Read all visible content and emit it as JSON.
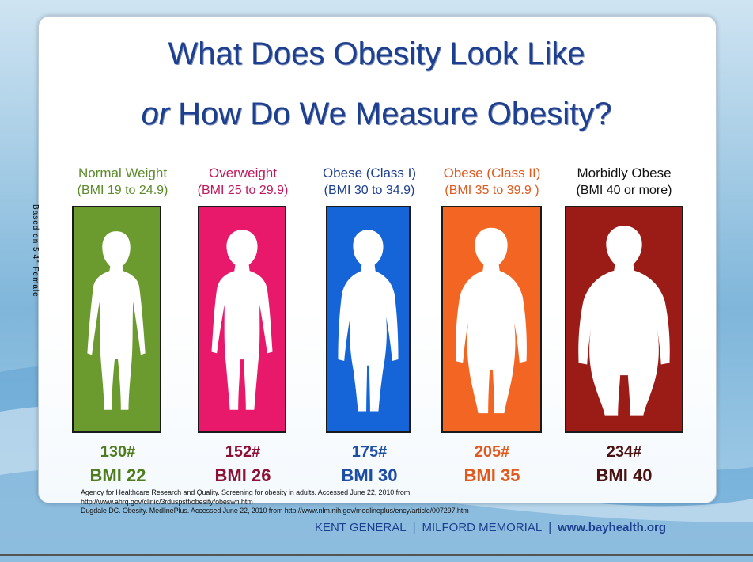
{
  "title": {
    "line1": "What Does Obesity Look Like",
    "line2_or": "or",
    "line2_rest": " How Do We Measure Obesity?"
  },
  "side_note": "Based on 5'4\" Female",
  "categories": [
    {
      "name": "Normal Weight",
      "range": "(BMI 19 to 24.9)",
      "weight": "130#",
      "bmi": "BMI 22",
      "color": "#6b9a2e",
      "label_color": "#5a8a2a",
      "text_color": "#4f7d1e"
    },
    {
      "name": "Overweight",
      "range": "(BMI 25 to 29.9)",
      "weight": "152#",
      "bmi": "BMI 26",
      "color": "#e8196a",
      "label_color": "#c0185a",
      "text_color": "#8c1235"
    },
    {
      "name": "Obese (Class I)",
      "range": "(BMI 30 to 34.9)",
      "weight": "175#",
      "bmi": "BMI 30",
      "color": "#1565d8",
      "label_color": "#1d3f8f",
      "text_color": "#1d4ea3"
    },
    {
      "name": "Obese (Class II)",
      "range": "(BMI 35 to 39.9 )",
      "weight": "205#",
      "bmi": "BMI 35",
      "color": "#f26522",
      "label_color": "#e05a1e",
      "text_color": "#e05a1e"
    },
    {
      "name": "Morbidly Obese",
      "range": "(BMI 40 or more)",
      "weight": "234#",
      "bmi": "BMI 40",
      "color": "#9b1c16",
      "label_color": "#111111",
      "text_color": "#4a1210"
    }
  ],
  "references": [
    "Agency for Healthcare Research and Quality. Screening for obesity in adults. Accessed June 22, 2010 from",
    "http://www.ahrq.gov/clinic/3rduspstf/obesity/obeswh.htm",
    "Dugdale DC. Obesity. MedlinePlus. Accessed June 22, 2010 from http://www.nlm.nih.gov/medlineplus/ency/article/007297.htm"
  ],
  "footer": {
    "left": "KENT GENERAL",
    "sep1": "|",
    "middle": "MILFORD MEMORIAL",
    "sep2": "|",
    "site": "www.bayhealth.org"
  }
}
